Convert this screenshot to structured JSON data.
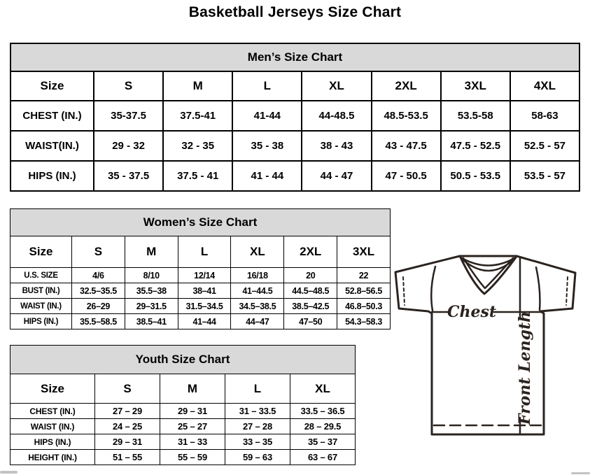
{
  "page_title": "Basketball Jerseys Size Chart",
  "mens": {
    "title": "Men’s Size Chart",
    "columns": [
      "Size",
      "S",
      "M",
      "L",
      "XL",
      "2XL",
      "3XL",
      "4XL"
    ],
    "rows": [
      {
        "label": "CHEST (IN.)",
        "values": [
          "35-37.5",
          "37.5-41",
          "41-44",
          "44-48.5",
          "48.5-53.5",
          "53.5-58",
          "58-63"
        ]
      },
      {
        "label": "WAIST(IN.)",
        "values": [
          "29 - 32",
          "32 - 35",
          "35 - 38",
          "38 - 43",
          "43 - 47.5",
          "47.5 - 52.5",
          "52.5 - 57"
        ]
      },
      {
        "label": "HIPS (IN.)",
        "values": [
          "35 - 37.5",
          "37.5 - 41",
          "41 - 44",
          "44 - 47",
          "47 - 50.5",
          "50.5 - 53.5",
          "53.5 - 57"
        ]
      }
    ]
  },
  "womens": {
    "title": "Women’s Size Chart",
    "columns": [
      "Size",
      "S",
      "M",
      "L",
      "XL",
      "2XL",
      "3XL"
    ],
    "rows": [
      {
        "label": "U.S. SIZE",
        "values": [
          "4/6",
          "8/10",
          "12/14",
          "16/18",
          "20",
          "22"
        ]
      },
      {
        "label": "BUST (IN.)",
        "values": [
          "32.5–35.5",
          "35.5–38",
          "38–41",
          "41–44.5",
          "44.5–48.5",
          "52.8–56.5"
        ]
      },
      {
        "label": "WAIST (IN.)",
        "values": [
          "26–29",
          "29–31.5",
          "31.5–34.5",
          "34.5–38.5",
          "38.5–42.5",
          "46.8–50.3"
        ]
      },
      {
        "label": "HIPS (IN.)",
        "values": [
          "35.5–58.5",
          "38.5–41",
          "41–44",
          "44–47",
          "47–50",
          "54.3–58.3"
        ]
      }
    ]
  },
  "youth": {
    "title": "Youth Size Chart",
    "columns": [
      "Size",
      "S",
      "M",
      "L",
      "XL"
    ],
    "rows": [
      {
        "label": "CHEST (IN.)",
        "values": [
          "27 – 29",
          "29 – 31",
          "31 – 33.5",
          "33.5 – 36.5"
        ]
      },
      {
        "label": "WAIST (IN.)",
        "values": [
          "24 – 25",
          "25 – 27",
          "27 – 28",
          "28 – 29.5"
        ]
      },
      {
        "label": "HIPS (IN.)",
        "values": [
          "29 – 31",
          "31 – 33",
          "33 – 35",
          "35 – 37"
        ]
      },
      {
        "label": "HEIGHT (IN.)",
        "values": [
          "51 – 55",
          "55 – 59",
          "59 – 63",
          "63 – 67"
        ]
      }
    ]
  },
  "diagram": {
    "chest_label": "Chest",
    "front_length_label": "Front Length",
    "line_color": "#2a231f"
  },
  "colors": {
    "table_band_bg": "#d9d9d9",
    "table_border": "#000000",
    "scrollbar_fragment": "#c3c3c3"
  }
}
